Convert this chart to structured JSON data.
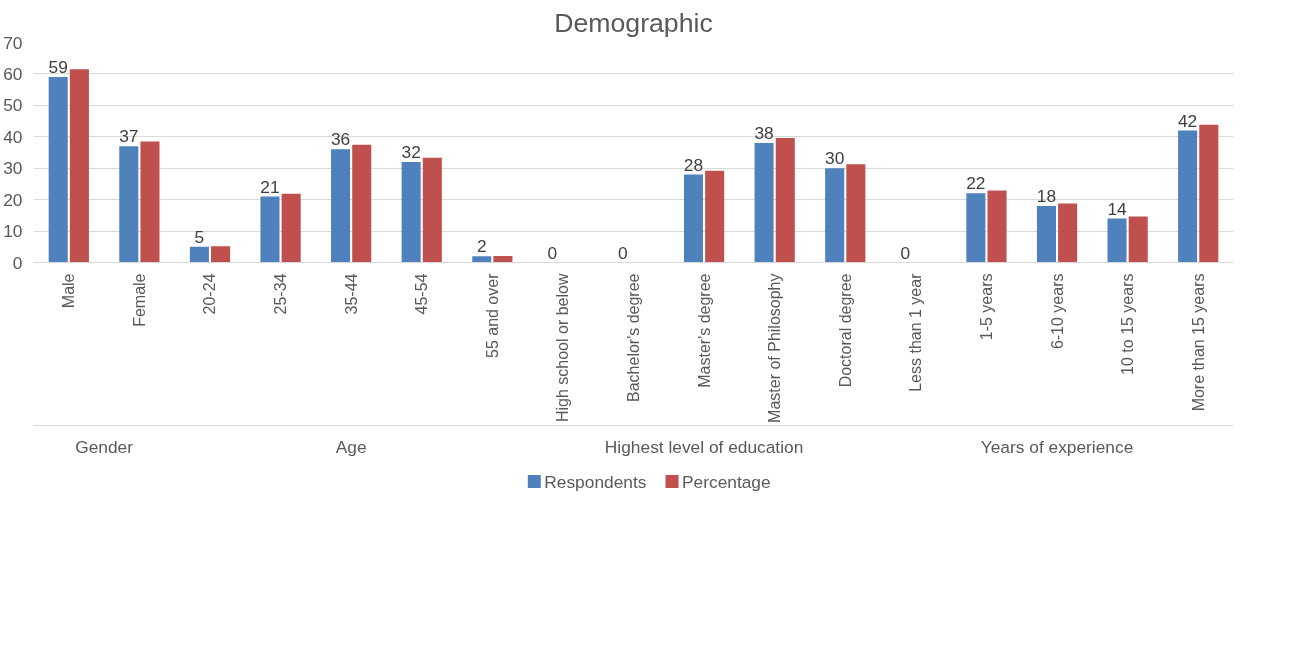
{
  "chart_data": {
    "type": "bar",
    "title": "Demographic",
    "categories": [
      "Male",
      "Female",
      "20-24",
      "25-34",
      "35-44",
      "45-54",
      "55 and over",
      "High school or below",
      "Bachelor's degree",
      "Master's degree",
      "Master of Philosophy",
      "Doctoral degree",
      "Less than 1 year",
      "1-5 years",
      "6-10 years",
      "10 to 15 years",
      "More than 15 years"
    ],
    "series": [
      {
        "name": "Respondents",
        "color": "#4f81bd",
        "values": [
          59,
          37,
          5,
          21,
          36,
          32,
          2,
          0,
          0,
          28,
          38,
          30,
          0,
          22,
          18,
          14,
          42
        ],
        "value_labels": [
          "59",
          "37",
          "5",
          "21",
          "36",
          "32",
          "2",
          "0",
          "0",
          "28",
          "38",
          "30",
          "0",
          "22",
          "18",
          "14",
          "42"
        ]
      },
      {
        "name": "Percentage",
        "color": "#c0504d",
        "values": [
          61.5,
          38.5,
          5.2,
          21.9,
          37.5,
          33.3,
          2.1,
          0,
          0,
          29.2,
          39.6,
          31.3,
          0,
          22.9,
          18.8,
          14.6,
          43.8
        ]
      }
    ],
    "annotations": [
      "Gender",
      "Age",
      "Highest level of education",
      "Years of experience"
    ],
    "ylim": [
      0,
      70
    ],
    "yticks": [
      0,
      10,
      20,
      30,
      40,
      50,
      60,
      70
    ],
    "grid": "y",
    "legend": "bottom"
  }
}
